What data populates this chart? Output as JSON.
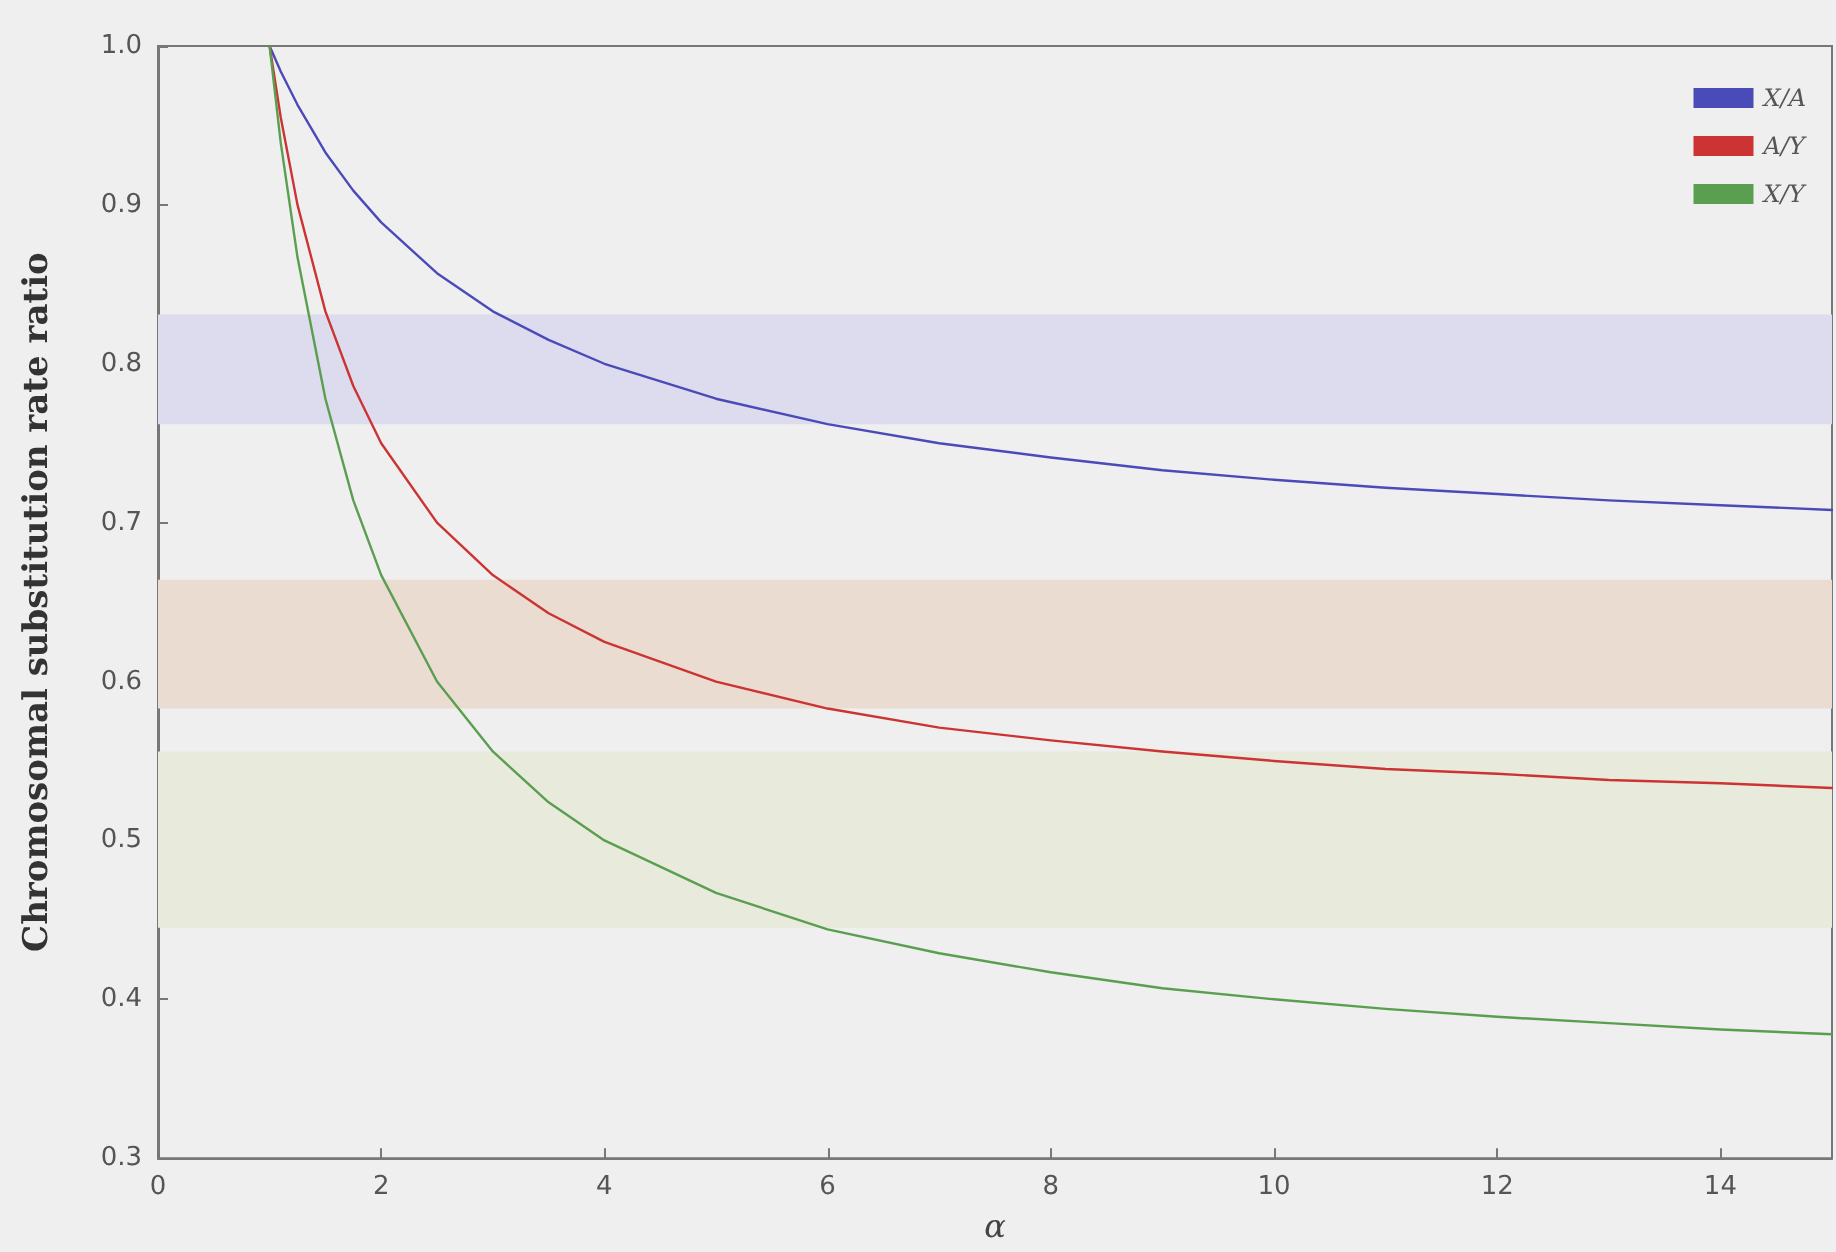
{
  "chart_data": {
    "type": "line",
    "xlabel": "α",
    "ylabel": "Chromosomal substitution rate ratio",
    "x": [
      1,
      1.1,
      1.25,
      1.5,
      1.75,
      2,
      2.5,
      3,
      3.5,
      4,
      5,
      6,
      7,
      8,
      9,
      10,
      11,
      12,
      13,
      14,
      15
    ],
    "series": [
      {
        "name": "X/A",
        "color": "#4a4ab8",
        "values": [
          1.0,
          0.984,
          0.963,
          0.933,
          0.909,
          0.889,
          0.857,
          0.833,
          0.815,
          0.8,
          0.778,
          0.762,
          0.75,
          0.741,
          0.733,
          0.727,
          0.722,
          0.718,
          0.714,
          0.711,
          0.708
        ]
      },
      {
        "name": "A/Y",
        "color": "#cc3333",
        "values": [
          1.0,
          0.955,
          0.9,
          0.833,
          0.786,
          0.75,
          0.7,
          0.667,
          0.643,
          0.625,
          0.6,
          0.583,
          0.571,
          0.563,
          0.556,
          0.55,
          0.545,
          0.542,
          0.538,
          0.536,
          0.533
        ]
      },
      {
        "name": "X/Y",
        "color": "#5a9e50",
        "values": [
          1.0,
          0.939,
          0.867,
          0.778,
          0.714,
          0.667,
          0.6,
          0.556,
          0.524,
          0.5,
          0.467,
          0.444,
          0.429,
          0.417,
          0.407,
          0.4,
          0.394,
          0.389,
          0.385,
          0.381,
          0.378
        ]
      }
    ],
    "bands": [
      {
        "axis": "y",
        "from": 0.762,
        "to": 0.831,
        "color": "#dcdcee"
      },
      {
        "axis": "y",
        "from": 0.583,
        "to": 0.664,
        "color": "#ebdcd2"
      },
      {
        "axis": "y",
        "from": 0.445,
        "to": 0.556,
        "color": "#e8eadb"
      }
    ],
    "xlim": [
      0,
      15
    ],
    "xticks": [
      0,
      2,
      4,
      6,
      8,
      10,
      12,
      14
    ],
    "ylim": [
      0.3,
      1.0
    ],
    "yticks": [
      0.3,
      0.4,
      0.5,
      0.6,
      0.7,
      0.8,
      0.9,
      {
        "value": 1.0,
        "label": "1.0"
      }
    ],
    "legend": "top right",
    "grid": false,
    "marker": "none",
    "line_style": "solid"
  }
}
